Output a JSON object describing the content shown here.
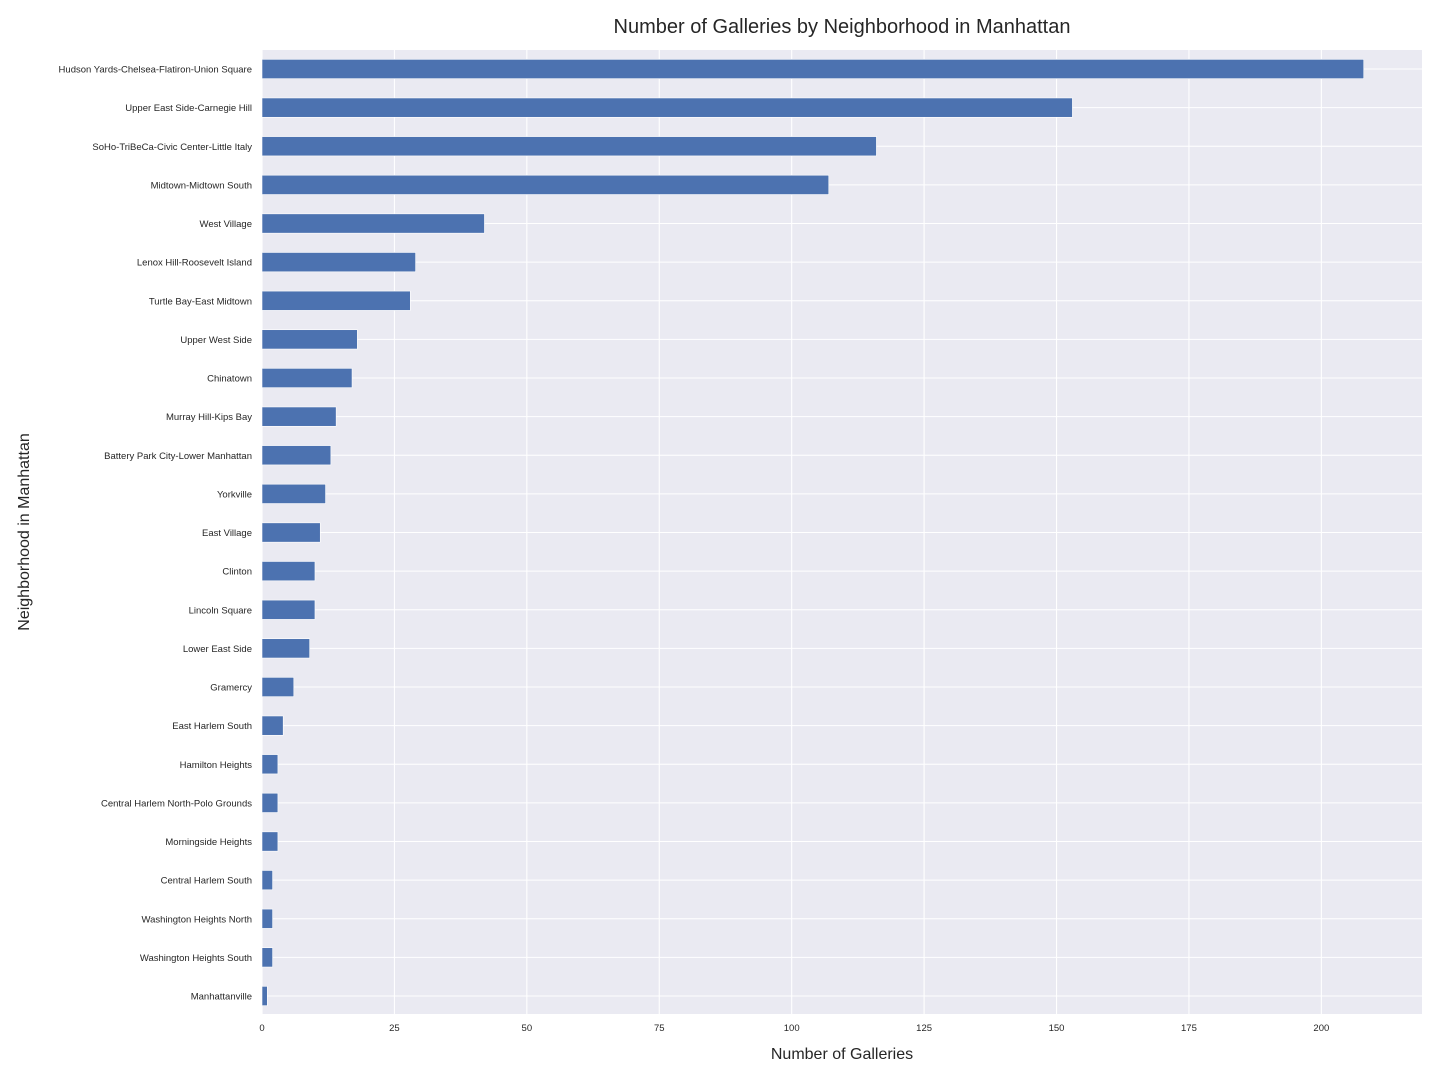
{
  "chart_data": {
    "type": "bar",
    "orientation": "horizontal",
    "title": "Number of Galleries by Neighborhood in Manhattan",
    "xlabel": "Number of Galleries",
    "ylabel": "Neighborhood in Manhattan",
    "xlim": [
      0,
      219
    ],
    "xticks": [
      0,
      25,
      50,
      75,
      100,
      125,
      150,
      175,
      200
    ],
    "grid": true,
    "style": "seaborn-darkgrid",
    "bar_color": "#4c72b0",
    "background_color": "#eaeaf2",
    "categories": [
      "Hudson Yards-Chelsea-Flatiron-Union Square",
      "Upper East Side-Carnegie Hill",
      "SoHo-TriBeCa-Civic Center-Little Italy",
      "Midtown-Midtown South",
      "West Village",
      "Lenox Hill-Roosevelt Island",
      "Turtle Bay-East Midtown",
      "Upper West Side",
      "Chinatown",
      "Murray Hill-Kips Bay",
      "Battery Park City-Lower Manhattan",
      "Yorkville",
      "East Village",
      "Clinton",
      "Lincoln Square",
      "Lower East Side",
      "Gramercy",
      "East Harlem South",
      "Hamilton Heights",
      "Central Harlem North-Polo Grounds",
      "Morningside Heights",
      "Central Harlem South",
      "Washington Heights North",
      "Washington Heights South",
      "Manhattanville"
    ],
    "values": [
      208,
      153,
      116,
      107,
      42,
      29,
      28,
      18,
      17,
      14,
      13,
      12,
      11,
      10,
      10,
      9,
      6,
      4,
      3,
      3,
      3,
      2,
      2,
      2,
      1
    ]
  }
}
